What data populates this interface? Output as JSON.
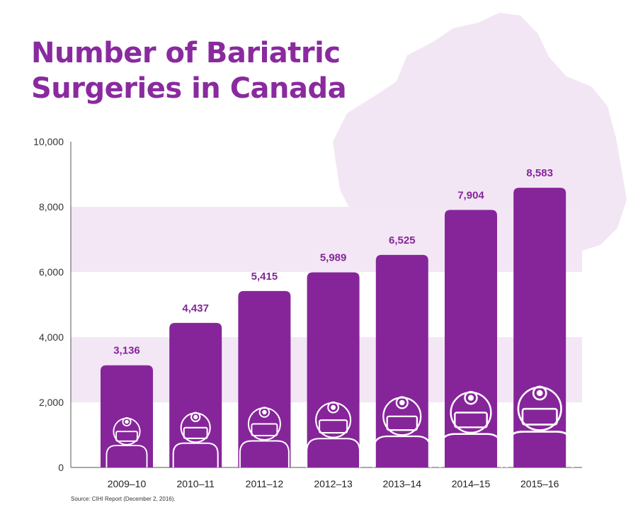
{
  "title_lines": [
    "Number of Bariatric",
    "Surgeries in Canada"
  ],
  "source": "Source: CIHI Report (December 2, 2016).",
  "colors": {
    "bar": "#86259a",
    "title": "#8a2a9f",
    "band": "#f3e7f5",
    "map": "#f2e6f4",
    "icon": "#ffffff",
    "axis": "#555555",
    "label": "#86259a"
  },
  "icon": "surgeon-icon",
  "chart_data": {
    "type": "bar",
    "title": "Number of Bariatric Surgeries in Canada",
    "xlabel": "",
    "ylabel": "",
    "categories": [
      "2009–10",
      "2010–11",
      "2011–12",
      "2012–13",
      "2013–14",
      "2014–15",
      "2015–16"
    ],
    "values": [
      3136,
      4437,
      5415,
      5989,
      6525,
      7904,
      8583
    ],
    "value_labels": [
      "3,136",
      "4,437",
      "5,415",
      "5,989",
      "6,525",
      "7,904",
      "8,583"
    ],
    "ylim": [
      0,
      10000
    ],
    "yticks": [
      0,
      2000,
      4000,
      6000,
      8000,
      10000
    ],
    "ytick_labels": [
      "0",
      "2,000",
      "4,000",
      "6,000",
      "8,000",
      "10,000"
    ],
    "shaded_bands": [
      [
        2000,
        4000
      ],
      [
        6000,
        8000
      ]
    ],
    "grid": false,
    "legend": "none"
  }
}
